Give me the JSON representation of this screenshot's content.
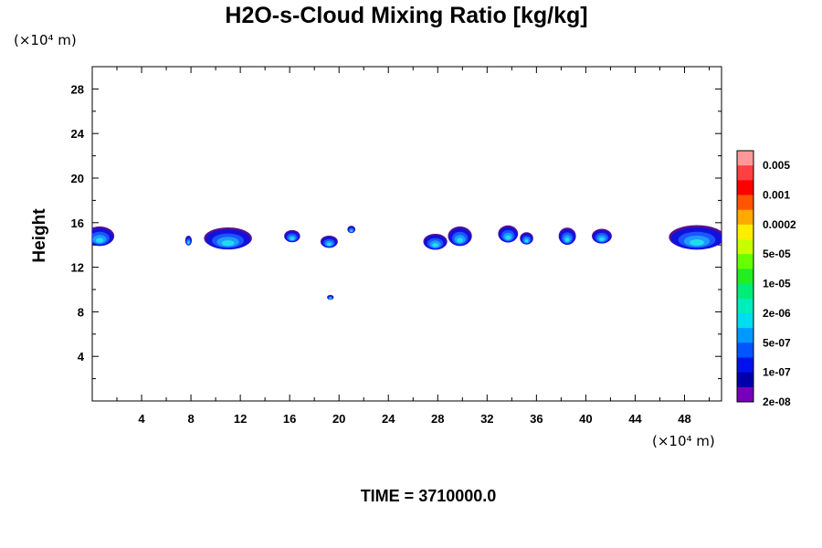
{
  "chart_data": {
    "type": "contour",
    "title": "H2O-s-Cloud Mixing Ratio [kg/kg]",
    "ylabel": "Height",
    "x_unit": "(×10⁴ m)",
    "y_unit": "(×10⁴ m)",
    "xlim": [
      0,
      51
    ],
    "ylim": [
      0,
      30
    ],
    "x_ticks": [
      4,
      8,
      12,
      16,
      20,
      24,
      28,
      32,
      36,
      40,
      44,
      48
    ],
    "x_tick_labels": [
      "4",
      "8",
      "12",
      "16",
      "20",
      "24",
      "28",
      "32",
      "36",
      "40",
      "44",
      "48"
    ],
    "y_ticks": [
      4,
      8,
      12,
      16,
      20,
      24,
      28
    ],
    "y_tick_labels": [
      "4",
      "8",
      "12",
      "16",
      "20",
      "24",
      "28"
    ],
    "footer": "TIME = 3710000.0",
    "colorbar": {
      "colors": [
        "#ff9999",
        "#ff4040",
        "#ff0000",
        "#ff5500",
        "#ffaa00",
        "#ffee00",
        "#c8ff00",
        "#66ff00",
        "#22ee22",
        "#00ee77",
        "#00eebb",
        "#00ddee",
        "#0099ff",
        "#0055ff",
        "#0011ee",
        "#0000aa",
        "#7700bb"
      ],
      "labels": [
        "0.005",
        "0.001",
        "0.0002",
        "5e-05",
        "1e-05",
        "2e-06",
        "5e-07",
        "1e-07",
        "2e-08"
      ]
    },
    "cloud_patches": [
      {
        "x": 0.6,
        "y": 14.8,
        "w": 2.2,
        "h": 1.6
      },
      {
        "x": 7.8,
        "y": 14.4,
        "w": 0.5,
        "h": 0.8
      },
      {
        "x": 11.0,
        "y": 14.6,
        "w": 3.6,
        "h": 1.8
      },
      {
        "x": 16.2,
        "y": 14.8,
        "w": 1.2,
        "h": 1.0
      },
      {
        "x": 19.2,
        "y": 14.3,
        "w": 1.3,
        "h": 1.0
      },
      {
        "x": 21.0,
        "y": 15.4,
        "w": 0.6,
        "h": 0.6
      },
      {
        "x": 19.3,
        "y": 9.3,
        "w": 0.5,
        "h": 0.4
      },
      {
        "x": 27.8,
        "y": 14.3,
        "w": 1.8,
        "h": 1.3
      },
      {
        "x": 29.8,
        "y": 14.8,
        "w": 1.8,
        "h": 1.6
      },
      {
        "x": 33.7,
        "y": 15.0,
        "w": 1.5,
        "h": 1.4
      },
      {
        "x": 35.2,
        "y": 14.6,
        "w": 1.0,
        "h": 1.0
      },
      {
        "x": 38.5,
        "y": 14.8,
        "w": 1.3,
        "h": 1.4
      },
      {
        "x": 41.3,
        "y": 14.8,
        "w": 1.5,
        "h": 1.2
      },
      {
        "x": 49.0,
        "y": 14.7,
        "w": 4.2,
        "h": 2.0
      }
    ]
  }
}
